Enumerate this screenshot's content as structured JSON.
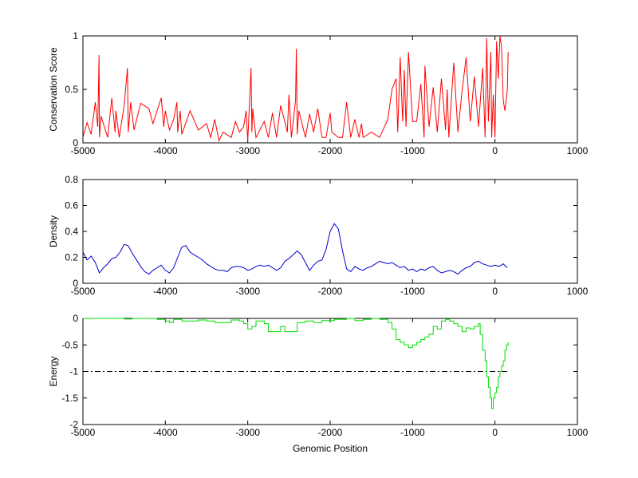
{
  "chart_data": [
    {
      "type": "line",
      "ylabel": "Conservation Score",
      "xlabel": "",
      "xlim": [
        -5000,
        1000
      ],
      "ylim": [
        0,
        1
      ],
      "xticks": [
        -5000,
        -4000,
        -3000,
        -2000,
        -1000,
        0,
        1000
      ],
      "yticks": [
        0,
        0.5,
        1
      ],
      "ytick_labels": [
        "0",
        "0.5",
        "1"
      ],
      "grid": false,
      "series": [
        {
          "color": "#ff0000",
          "x": [
            -5000,
            -4950,
            -4900,
            -4850,
            -4820,
            -4805,
            -4800,
            -4780,
            -4700,
            -4650,
            -4610,
            -4600,
            -4560,
            -4500,
            -4460,
            -4450,
            -4420,
            -4380,
            -4300,
            -4200,
            -4150,
            -4100,
            -4050,
            -4020,
            -4000,
            -3950,
            -3900,
            -3860,
            -3850,
            -3820,
            -3800,
            -3700,
            -3600,
            -3500,
            -3450,
            -3400,
            -3350,
            -3300,
            -3200,
            -3150,
            -3100,
            -3050,
            -3020,
            -3000,
            -2960,
            -2950,
            -2940,
            -2900,
            -2800,
            -2750,
            -2700,
            -2650,
            -2600,
            -2520,
            -2500,
            -2470,
            -2420,
            -2410,
            -2400,
            -2380,
            -2300,
            -2250,
            -2200,
            -2150,
            -2100,
            -2050,
            -2000,
            -1980,
            -1900,
            -1850,
            -1800,
            -1750,
            -1700,
            -1650,
            -1620,
            -1600,
            -1500,
            -1400,
            -1300,
            -1250,
            -1200,
            -1180,
            -1150,
            -1120,
            -1100,
            -1080,
            -1050,
            -1000,
            -950,
            -900,
            -860,
            -850,
            -800,
            -750,
            -700,
            -650,
            -600,
            -580,
            -560,
            -500,
            -450,
            -400,
            -350,
            -300,
            -250,
            -200,
            -150,
            -120,
            -100,
            -80,
            -50,
            -40,
            -20,
            0,
            20,
            40,
            60,
            80,
            100,
            120,
            150,
            160
          ],
          "y": [
            0.05,
            0.19,
            0.08,
            0.38,
            0.15,
            0.82,
            0.05,
            0.25,
            0.05,
            0.42,
            0.1,
            0.3,
            0.05,
            0.35,
            0.7,
            0.1,
            0.38,
            0.12,
            0.37,
            0.32,
            0.18,
            0.3,
            0.42,
            0.15,
            0.3,
            0.12,
            0.22,
            0.38,
            0.1,
            0.3,
            0.08,
            0.3,
            0.12,
            0.18,
            0.05,
            0.22,
            0.02,
            0.1,
            0.05,
            0.2,
            0.1,
            0.15,
            0.3,
            0.02,
            0.7,
            0.1,
            0.32,
            0.05,
            0.2,
            0.05,
            0.28,
            0.05,
            0.35,
            0.1,
            0.45,
            0.05,
            0.4,
            0.88,
            0.08,
            0.3,
            0.05,
            0.27,
            0.1,
            0.32,
            0.05,
            0.05,
            0.28,
            0.1,
            0.05,
            0.05,
            0.38,
            0.05,
            0.22,
            0.05,
            0.18,
            0.05,
            0.1,
            0.05,
            0.22,
            0.5,
            0.6,
            0.1,
            0.8,
            0.2,
            0.68,
            0.15,
            0.85,
            0.2,
            0.2,
            0.55,
            0.05,
            0.72,
            0.15,
            0.52,
            0.1,
            0.6,
            0.12,
            0.5,
            0.05,
            0.75,
            0.1,
            0.48,
            0.8,
            0.2,
            0.62,
            0.15,
            0.7,
            0.05,
            0.98,
            0.2,
            0.85,
            0.05,
            0.45,
            0.05,
            0.95,
            0.6,
            1.0,
            0.9,
            0.4,
            0.3,
            0.5,
            0.85
          ]
        }
      ]
    },
    {
      "type": "line",
      "ylabel": "Density",
      "xlabel": "",
      "xlim": [
        -5000,
        1000
      ],
      "ylim": [
        0,
        0.8
      ],
      "xticks": [
        -5000,
        -4000,
        -3000,
        -2000,
        -1000,
        0,
        1000
      ],
      "yticks": [
        0,
        0.2,
        0.4,
        0.6,
        0.8
      ],
      "ytick_labels": [
        "0",
        "0.2",
        "0.4",
        "0.6",
        "0.8"
      ],
      "grid": false,
      "series": [
        {
          "color": "#0000cc",
          "x": [
            -5000,
            -4950,
            -4900,
            -4850,
            -4800,
            -4750,
            -4700,
            -4650,
            -4600,
            -4550,
            -4500,
            -4450,
            -4400,
            -4350,
            -4300,
            -4250,
            -4200,
            -4150,
            -4100,
            -4050,
            -4000,
            -3950,
            -3900,
            -3850,
            -3800,
            -3750,
            -3700,
            -3650,
            -3600,
            -3550,
            -3500,
            -3450,
            -3400,
            -3350,
            -3300,
            -3250,
            -3200,
            -3150,
            -3100,
            -3050,
            -3000,
            -2950,
            -2900,
            -2850,
            -2800,
            -2750,
            -2700,
            -2650,
            -2600,
            -2550,
            -2500,
            -2450,
            -2400,
            -2350,
            -2300,
            -2250,
            -2200,
            -2150,
            -2100,
            -2050,
            -2000,
            -1950,
            -1900,
            -1850,
            -1800,
            -1750,
            -1700,
            -1650,
            -1600,
            -1550,
            -1500,
            -1450,
            -1400,
            -1350,
            -1300,
            -1250,
            -1200,
            -1150,
            -1100,
            -1050,
            -1000,
            -950,
            -900,
            -850,
            -800,
            -750,
            -700,
            -650,
            -600,
            -550,
            -500,
            -450,
            -400,
            -350,
            -300,
            -250,
            -200,
            -150,
            -100,
            -50,
            0,
            50,
            100,
            150
          ],
          "y": [
            0.24,
            0.18,
            0.21,
            0.16,
            0.08,
            0.12,
            0.15,
            0.19,
            0.2,
            0.24,
            0.3,
            0.29,
            0.23,
            0.18,
            0.13,
            0.09,
            0.07,
            0.1,
            0.12,
            0.14,
            0.1,
            0.08,
            0.12,
            0.2,
            0.28,
            0.29,
            0.24,
            0.22,
            0.2,
            0.18,
            0.15,
            0.13,
            0.11,
            0.1,
            0.1,
            0.09,
            0.12,
            0.13,
            0.13,
            0.12,
            0.1,
            0.11,
            0.13,
            0.14,
            0.13,
            0.14,
            0.12,
            0.1,
            0.12,
            0.17,
            0.19,
            0.22,
            0.25,
            0.22,
            0.16,
            0.1,
            0.14,
            0.17,
            0.18,
            0.26,
            0.4,
            0.46,
            0.42,
            0.25,
            0.11,
            0.09,
            0.13,
            0.11,
            0.1,
            0.12,
            0.13,
            0.15,
            0.17,
            0.16,
            0.15,
            0.16,
            0.14,
            0.12,
            0.13,
            0.1,
            0.11,
            0.09,
            0.11,
            0.1,
            0.12,
            0.13,
            0.1,
            0.08,
            0.09,
            0.1,
            0.09,
            0.07,
            0.1,
            0.12,
            0.13,
            0.16,
            0.17,
            0.15,
            0.14,
            0.13,
            0.14,
            0.13,
            0.15,
            0.12
          ]
        }
      ]
    },
    {
      "type": "line",
      "ylabel": "Energy",
      "xlabel": "Genomic Position",
      "xlim": [
        -5000,
        1000
      ],
      "ylim": [
        -2,
        0
      ],
      "xticks": [
        -5000,
        -4000,
        -3000,
        -2000,
        -1000,
        0,
        1000
      ],
      "yticks": [
        -2,
        -1.5,
        -1,
        -0.5,
        0
      ],
      "ytick_labels": [
        "-2",
        "-1.5",
        "-1",
        "-0.5",
        "0"
      ],
      "grid": false,
      "reference_line": {
        "y": -1,
        "x_range": [
          -5000,
          160
        ],
        "style": "dash-dot",
        "color": "#000000"
      },
      "series": [
        {
          "color": "#00dd00",
          "step": true,
          "x": [
            -5000,
            -4500,
            -4400,
            -4100,
            -4000,
            -3950,
            -3900,
            -3800,
            -3600,
            -3500,
            -3400,
            -3200,
            -3100,
            -3050,
            -3000,
            -2950,
            -2900,
            -2800,
            -2750,
            -2600,
            -2550,
            -2400,
            -2300,
            -2200,
            -2100,
            -1950,
            -1800,
            -1700,
            -1600,
            -1500,
            -1400,
            -1300,
            -1250,
            -1200,
            -1150,
            -1100,
            -1050,
            -1000,
            -950,
            -900,
            -850,
            -800,
            -750,
            -700,
            -650,
            -600,
            -550,
            -500,
            -450,
            -400,
            -350,
            -300,
            -250,
            -200,
            -180,
            -150,
            -120,
            -100,
            -80,
            -60,
            -40,
            -20,
            0,
            20,
            40,
            60,
            80,
            100,
            120,
            140,
            160
          ],
          "y": [
            0,
            -0.01,
            0,
            -0.02,
            -0.05,
            -0.08,
            -0.02,
            -0.05,
            -0.03,
            -0.05,
            -0.08,
            -0.03,
            -0.05,
            -0.1,
            -0.2,
            -0.15,
            -0.05,
            -0.1,
            -0.25,
            -0.15,
            -0.25,
            -0.08,
            -0.05,
            -0.08,
            -0.04,
            -0.02,
            0,
            -0.04,
            -0.02,
            0,
            -0.02,
            -0.08,
            -0.2,
            -0.4,
            -0.45,
            -0.5,
            -0.55,
            -0.5,
            -0.45,
            -0.4,
            -0.35,
            -0.3,
            -0.15,
            -0.2,
            -0.05,
            -0.02,
            -0.05,
            -0.1,
            -0.15,
            -0.25,
            -0.18,
            -0.2,
            -0.15,
            -0.1,
            -0.3,
            -0.6,
            -0.8,
            -1.1,
            -1.3,
            -1.5,
            -1.7,
            -1.5,
            -1.4,
            -1.3,
            -1.1,
            -1.0,
            -0.9,
            -0.8,
            -0.6,
            -0.5,
            -0.45
          ]
        }
      ]
    }
  ]
}
